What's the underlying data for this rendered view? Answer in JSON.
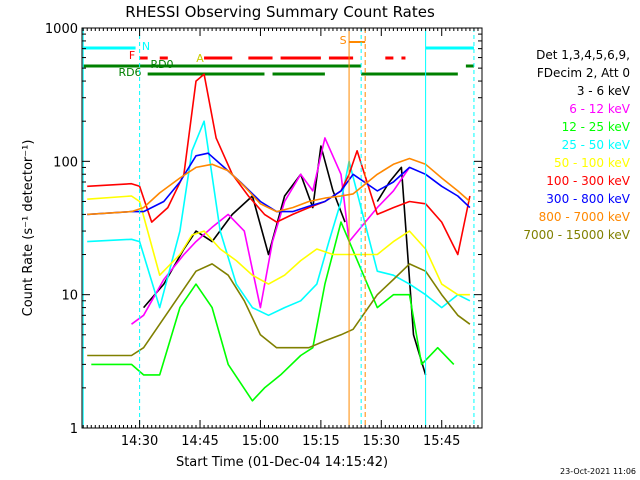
{
  "chart_data": {
    "type": "line",
    "title": "RHESSI Observing Summary Count Rates",
    "xlabel": "Start Time (01-Dec-04 14:15:42)",
    "ylabel": "Count Rate (s⁻¹ detector⁻¹)",
    "y_scale": "log",
    "ylim": [
      1,
      1000
    ],
    "xlim": [
      "14:15:42",
      "15:55:00"
    ],
    "grid": false,
    "legend_placement": "right",
    "x_ticks": [
      "14:30",
      "14:45",
      "15:00",
      "15:15",
      "15:30",
      "15:45"
    ],
    "y_ticks": [
      "1",
      "10",
      "100",
      "1000"
    ],
    "legend_header": [
      "Det 1,3,4,5,6,9,",
      "FDecim 2, Att 0"
    ],
    "timestamp": "23-Oct-2021 11:06",
    "series": [
      {
        "name": "3 - 6 keV",
        "color": "#000000",
        "x": [
          "14:31",
          "14:36",
          "14:41",
          "14:44",
          "14:48",
          "14:53",
          "14:58",
          "15:02",
          "15:06",
          "15:10",
          "15:13",
          "15:15",
          "15:18",
          "15:21",
          "15:23",
          "15:29",
          "15:32",
          "15:35",
          "15:38",
          "15:41"
        ],
        "y": [
          8,
          12,
          22,
          30,
          25,
          40,
          55,
          20,
          55,
          80,
          45,
          130,
          60,
          35,
          null,
          50,
          70,
          90,
          5,
          2.5
        ]
      },
      {
        "name": "6 - 12 keV",
        "color": "#ff00ff",
        "x": [
          "14:28",
          "14:31",
          "14:36",
          "14:41",
          "14:44",
          "14:48",
          "14:52",
          "14:56",
          "15:00",
          "15:03",
          "15:06",
          "15:10",
          "15:13",
          "15:16",
          "15:20",
          "15:22",
          "15:29",
          "15:33",
          "15:37"
        ],
        "y": [
          6,
          7,
          13,
          20,
          25,
          32,
          40,
          30,
          8,
          25,
          50,
          80,
          60,
          150,
          80,
          25,
          45,
          60,
          90
        ]
      },
      {
        "name": "12 - 25 keV",
        "color": "#00ff00",
        "x": [
          "14:18",
          "14:28",
          "14:31",
          "14:35",
          "14:40",
          "14:44",
          "14:48",
          "14:52",
          "14:58",
          "15:01",
          "15:05",
          "15:10",
          "15:13",
          "15:16",
          "15:20",
          "15:29",
          "15:33",
          "15:37",
          "15:40",
          "15:44",
          "15:48"
        ],
        "y": [
          3,
          3,
          2.5,
          2.5,
          8,
          12,
          8,
          3,
          1.6,
          2,
          2.5,
          3.5,
          4,
          12,
          35,
          8,
          10,
          10,
          3,
          4,
          3
        ]
      },
      {
        "name": "25 - 50 keV",
        "color": "#00ffff",
        "x": [
          "14:17",
          "14:28",
          "14:30",
          "14:35",
          "14:40",
          "14:43",
          "14:46",
          "14:50",
          "14:54",
          "14:58",
          "15:02",
          "15:06",
          "15:10",
          "15:14",
          "15:17",
          "15:20",
          "15:22",
          "15:29",
          "15:33",
          "15:37",
          "15:41",
          "15:45",
          "15:49",
          "15:52"
        ],
        "y": [
          25,
          26,
          25,
          8,
          30,
          120,
          200,
          30,
          12,
          8,
          7,
          8,
          9,
          12,
          25,
          50,
          100,
          15,
          14,
          12,
          10,
          8,
          10,
          9
        ]
      },
      {
        "name": "50 - 100 keV",
        "color": "#ffff00",
        "x": [
          "14:17",
          "14:28",
          "14:30",
          "14:35",
          "14:40",
          "14:43",
          "14:46",
          "14:50",
          "14:54",
          "14:58",
          "15:02",
          "15:06",
          "15:10",
          "15:14",
          "15:18",
          "15:22",
          "15:29",
          "15:33",
          "15:37",
          "15:41",
          "15:45",
          "15:49",
          "15:52"
        ],
        "y": [
          52,
          55,
          50,
          14,
          20,
          28,
          30,
          22,
          18,
          14,
          12,
          14,
          18,
          22,
          20,
          20,
          20,
          25,
          30,
          22,
          12,
          10,
          10
        ]
      },
      {
        "name": "100 - 300 keV",
        "color": "#ff0000",
        "x": [
          "14:17",
          "14:28",
          "14:30",
          "14:33",
          "14:37",
          "14:41",
          "14:44",
          "14:46",
          "14:49",
          "14:53",
          "14:57",
          "15:01",
          "15:04",
          "15:08",
          "15:12",
          "15:16",
          "15:20",
          "15:22",
          "15:24",
          "15:29",
          "15:33",
          "15:37",
          "15:41",
          "15:45",
          "15:49",
          "15:52"
        ],
        "y": [
          65,
          68,
          65,
          35,
          45,
          80,
          400,
          450,
          150,
          80,
          55,
          40,
          35,
          40,
          45,
          50,
          60,
          80,
          120,
          40,
          45,
          50,
          48,
          35,
          20,
          55
        ]
      },
      {
        "name": "300 - 800 keV",
        "color": "#0000ff",
        "x": [
          "14:17",
          "14:28",
          "14:31",
          "14:36",
          "14:40",
          "14:44",
          "14:47",
          "14:51",
          "14:55",
          "15:00",
          "15:04",
          "15:08",
          "15:12",
          "15:16",
          "15:20",
          "15:23",
          "15:29",
          "15:33",
          "15:37",
          "15:41",
          "15:45",
          "15:49",
          "15:52"
        ],
        "y": [
          40,
          42,
          42,
          50,
          70,
          110,
          115,
          90,
          70,
          50,
          42,
          42,
          46,
          50,
          60,
          80,
          60,
          70,
          90,
          80,
          65,
          55,
          45
        ]
      },
      {
        "name": "800 - 7000 keV",
        "color": "#ff8800",
        "x": [
          "14:17",
          "14:28",
          "14:31",
          "14:35",
          "14:40",
          "14:44",
          "14:48",
          "14:52",
          "14:56",
          "15:00",
          "15:04",
          "15:08",
          "15:12",
          "15:16",
          "15:20",
          "15:23",
          "15:29",
          "15:33",
          "15:37",
          "15:41",
          "15:45",
          "15:49",
          "15:52"
        ],
        "y": [
          40,
          42,
          45,
          58,
          75,
          90,
          95,
          85,
          65,
          48,
          42,
          45,
          50,
          53,
          55,
          57,
          80,
          95,
          105,
          95,
          75,
          60,
          50
        ]
      },
      {
        "name": "7000 - 15000 keV",
        "color": "#808000",
        "x": [
          "14:17",
          "14:28",
          "14:31",
          "14:35",
          "14:40",
          "14:44",
          "14:48",
          "14:52",
          "14:56",
          "15:00",
          "15:04",
          "15:08",
          "15:12",
          "15:16",
          "15:20",
          "15:23",
          "15:29",
          "15:33",
          "15:37",
          "15:41",
          "15:45",
          "15:49",
          "15:52"
        ],
        "y": [
          3.5,
          3.5,
          4,
          6,
          10,
          15,
          17,
          14,
          9,
          5,
          4,
          4,
          4,
          4.5,
          5,
          5.5,
          10,
          13,
          17,
          15,
          10,
          7,
          6
        ]
      }
    ],
    "flag_bars": [
      {
        "label": "N",
        "color": "#00ffff",
        "segments": [
          [
            "14:16",
            "14:29"
          ],
          [
            "15:41",
            "15:53"
          ]
        ]
      },
      {
        "label": "F",
        "color": "#ff0000",
        "segments": [
          [
            "14:30",
            "14:32"
          ],
          [
            "14:35",
            "14:37"
          ],
          [
            "14:46",
            "14:53"
          ],
          [
            "14:57",
            "15:03"
          ],
          [
            "15:05",
            "15:15"
          ],
          [
            "15:17",
            "15:23"
          ],
          [
            "15:31",
            "15:33"
          ],
          [
            "15:35",
            "15:36"
          ]
        ]
      },
      {
        "label": "RD0",
        "color": "#008000",
        "segments": [
          [
            "14:16",
            "15:25"
          ],
          [
            "15:51",
            "15:53"
          ]
        ]
      },
      {
        "label": "RD6",
        "color": "#008000",
        "segments": [
          [
            "14:32",
            "15:01"
          ],
          [
            "15:03",
            "15:16"
          ],
          [
            "15:25",
            "15:49"
          ]
        ]
      }
    ],
    "saa_label": "S",
    "saa_window": [
      "15:22",
      "15:26"
    ],
    "night_markers": [
      "14:30",
      "15:25",
      "15:53"
    ],
    "saa_markers": [
      "15:22",
      "15:26"
    ],
    "flare_label": "A"
  }
}
